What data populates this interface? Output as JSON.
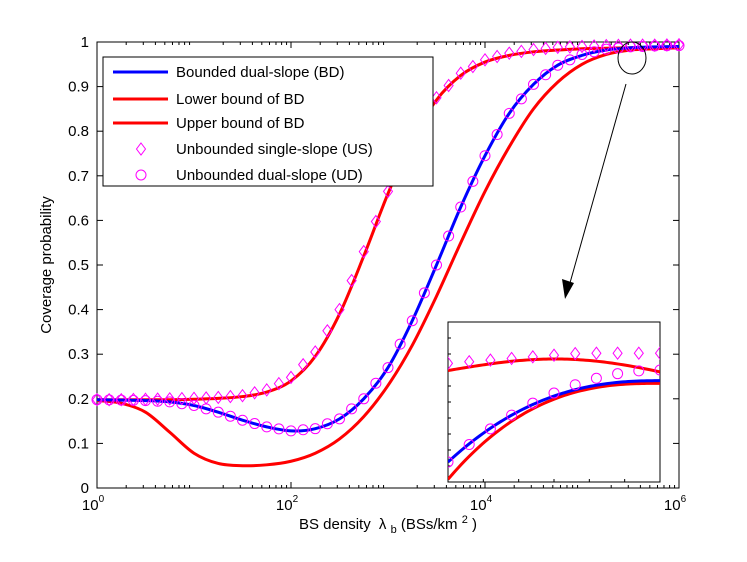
{
  "chart_data": {
    "type": "line",
    "title": "",
    "xlabel": "BS density",
    "xlabel_symbol": "λ",
    "xlabel_sub": "b",
    "xlabel_units": " (BSs/km",
    "xlabel_units_exp": "2",
    "xlabel_units_close": ")",
    "ylabel": "Coverage probability",
    "xscale": "log10",
    "xlim": [
      1,
      1000000
    ],
    "ylim": [
      0,
      1
    ],
    "grid": false,
    "legend_position": "top-left",
    "x_ticks": [
      {
        "base": "10",
        "exp": "0",
        "value": 1
      },
      {
        "base": "10",
        "exp": "2",
        "value": 100
      },
      {
        "base": "10",
        "exp": "4",
        "value": 10000
      },
      {
        "base": "10",
        "exp": "6",
        "value": 1000000
      }
    ],
    "y_ticks": [
      "0",
      "0.1",
      "0.2",
      "0.3",
      "0.4",
      "0.5",
      "0.6",
      "0.7",
      "0.8",
      "0.9",
      "1"
    ],
    "log10_x": [
      0,
      0.25,
      0.5,
      0.75,
      1.0,
      1.25,
      1.5,
      1.75,
      2.0,
      2.25,
      2.5,
      2.75,
      3.0,
      3.25,
      3.5,
      3.75,
      4.0,
      4.25,
      4.5,
      4.75,
      5.0,
      5.25,
      5.5,
      5.75,
      6.0
    ],
    "series": [
      {
        "name": "Bounded dual-slope (BD)",
        "color": "#0000ff",
        "style": "line",
        "values": [
          0.198,
          0.197,
          0.196,
          0.193,
          0.185,
          0.17,
          0.152,
          0.137,
          0.128,
          0.133,
          0.155,
          0.2,
          0.27,
          0.375,
          0.5,
          0.63,
          0.745,
          0.84,
          0.905,
          0.948,
          0.97,
          0.982,
          0.987,
          0.989,
          0.99
        ]
      },
      {
        "name": "Lower bound of BD",
        "color": "#ff0000",
        "style": "line",
        "values": [
          0.196,
          0.19,
          0.17,
          0.125,
          0.078,
          0.055,
          0.05,
          0.052,
          0.06,
          0.078,
          0.11,
          0.16,
          0.23,
          0.32,
          0.43,
          0.55,
          0.665,
          0.765,
          0.85,
          0.91,
          0.95,
          0.972,
          0.982,
          0.985,
          0.987
        ]
      },
      {
        "name": "Upper bound of BD",
        "color": "#ff0000",
        "style": "line",
        "values": [
          0.198,
          0.198,
          0.198,
          0.198,
          0.199,
          0.201,
          0.205,
          0.215,
          0.24,
          0.295,
          0.39,
          0.52,
          0.66,
          0.78,
          0.87,
          0.925,
          0.955,
          0.97,
          0.978,
          0.982,
          0.985,
          0.986,
          0.987,
          0.987,
          0.987
        ]
      },
      {
        "name": "Unbounded single-slope (US)",
        "color": "#ff00ff",
        "style": "diamond",
        "values": [
          0.198,
          0.198,
          0.199,
          0.2,
          0.201,
          0.203,
          0.207,
          0.22,
          0.248,
          0.305,
          0.4,
          0.53,
          0.665,
          0.785,
          0.875,
          0.93,
          0.96,
          0.975,
          0.983,
          0.988,
          0.99,
          0.992,
          0.993,
          0.993,
          0.994
        ]
      },
      {
        "name": "Unbounded dual-slope (UD)",
        "color": "#ff00ff",
        "style": "circle",
        "values": [
          0.198,
          0.197,
          0.196,
          0.193,
          0.185,
          0.17,
          0.152,
          0.137,
          0.128,
          0.133,
          0.155,
          0.2,
          0.27,
          0.375,
          0.5,
          0.63,
          0.745,
          0.84,
          0.905,
          0.948,
          0.972,
          0.984,
          0.989,
          0.991,
          0.992
        ]
      }
    ],
    "inset": {
      "description": "zoom of the top-right region marked by the ellipse"
    }
  }
}
